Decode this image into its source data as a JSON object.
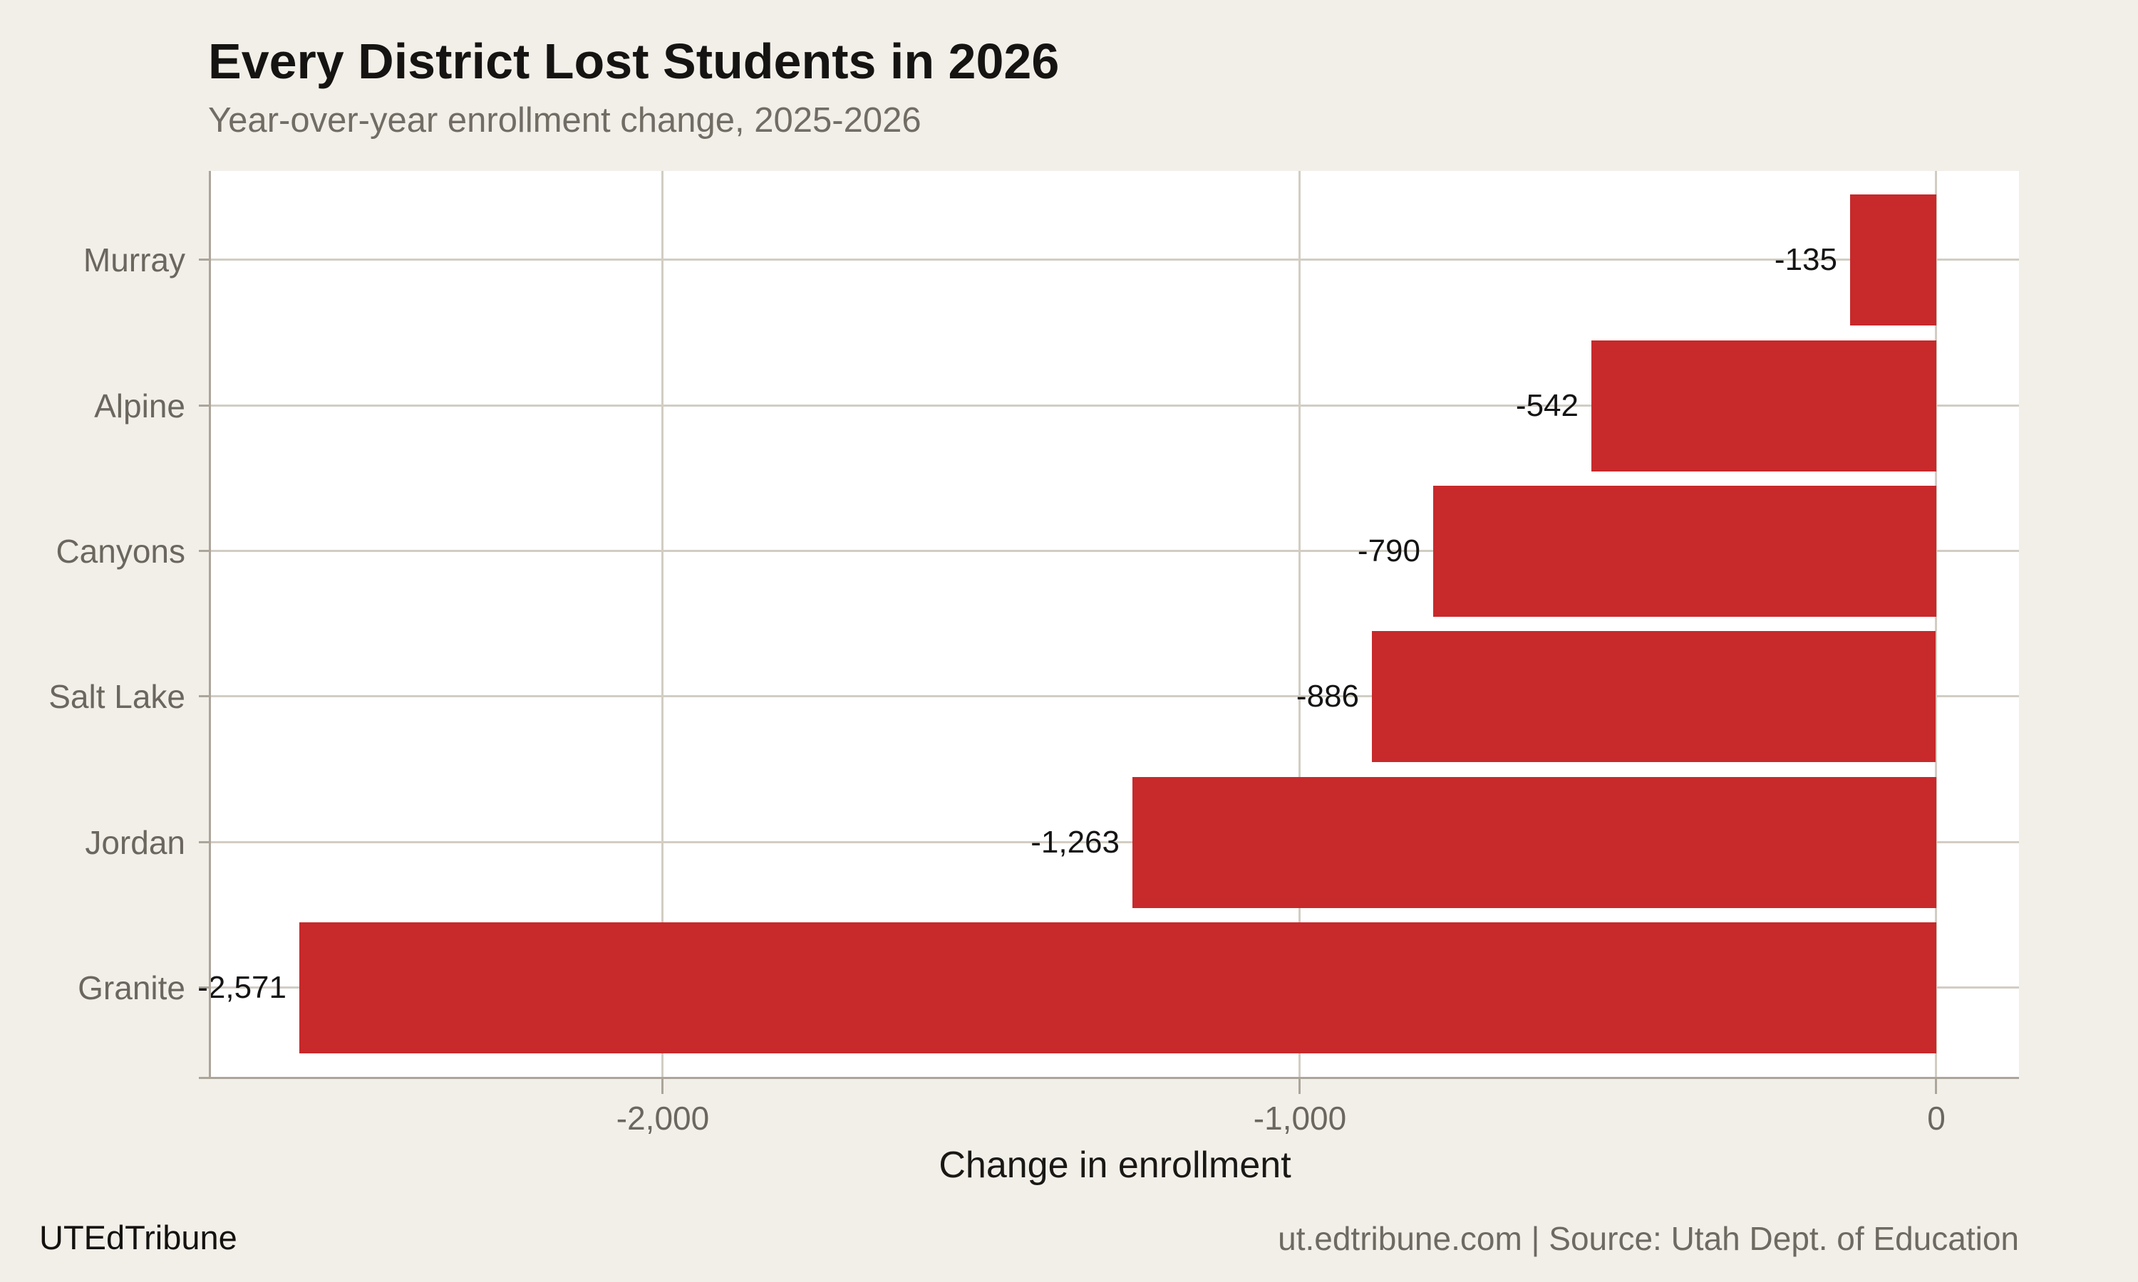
{
  "header": {
    "title": "Every District Lost Students in 2026",
    "subtitle": "Year-over-year enrollment change, 2025-2026"
  },
  "footer": {
    "brand": "UTEdTribune",
    "attribution": "ut.edtribune.com | Source: Utah Dept. of Education"
  },
  "chart_data": {
    "type": "bar",
    "orientation": "horizontal",
    "title": "Every District Lost Students in 2026",
    "subtitle": "Year-over-year enrollment change, 2025-2026",
    "xlabel": "Change in enrollment",
    "ylabel": "",
    "categories": [
      "Murray",
      "Alpine",
      "Canyons",
      "Salt Lake",
      "Jordan",
      "Granite"
    ],
    "values": [
      -135,
      -542,
      -790,
      -886,
      -1263,
      -2571
    ],
    "value_labels": [
      "-135",
      "-542",
      "-790",
      "-886",
      "-1,263",
      "-2,571"
    ],
    "xlim": [
      -2710,
      130
    ],
    "xticks": [
      {
        "value": -2000,
        "label": "-2,000"
      },
      {
        "value": -1000,
        "label": "-1,000"
      },
      {
        "value": 0,
        "label": "0"
      }
    ],
    "grid": true,
    "legend": "none",
    "colors": {
      "background": "#f2efe9",
      "plot_background": "#ffffff",
      "bar": "#c8292b",
      "gridline": "#d2cdc3",
      "axis": "#aba59a",
      "label_gray": "#6b675f",
      "label_black": "#141414"
    }
  }
}
